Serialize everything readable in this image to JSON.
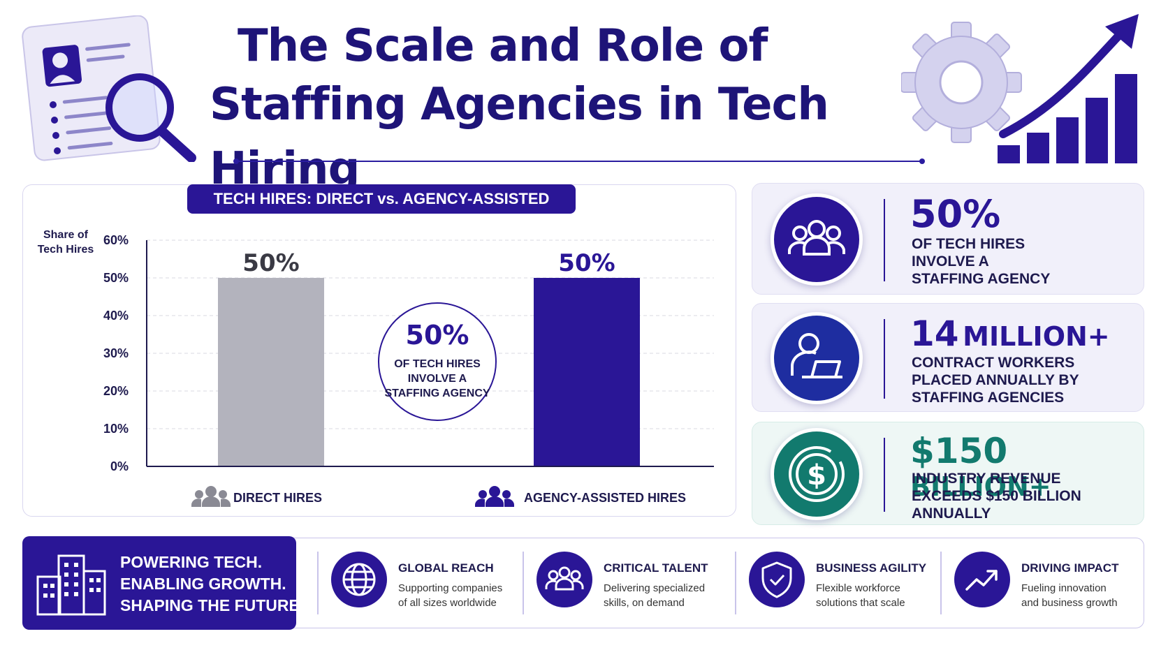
{
  "title": {
    "line1": "The Scale and Role of",
    "line2": "Staffing Agencies in Tech Hiring"
  },
  "chart_data": {
    "type": "bar",
    "title": "TECH HIRES: DIRECT vs. AGENCY-ASSISTED",
    "ylabel": "Share of Tech Hires",
    "ylim": [
      0,
      60
    ],
    "yticks": [
      "0%",
      "10%",
      "20%",
      "30%",
      "40%",
      "50%",
      "60%"
    ],
    "grid": true,
    "categories": [
      "DIRECT HIRES",
      "AGENCY-ASSISTED HIRES"
    ],
    "values": [
      50,
      50
    ],
    "data_labels": [
      "50%",
      "50%"
    ],
    "bar_colors": [
      "#b3b3bd",
      "#2a1696"
    ],
    "callout": {
      "value": "50%",
      "text_lines": [
        "OF TECH HIRES",
        "INVOLVE A",
        "STAFFING AGENCY"
      ]
    }
  },
  "stats": [
    {
      "icon": "people-group-icon",
      "value": "50%",
      "value_suffix": "",
      "lines": [
        "OF TECH HIRES",
        "INVOLVE A",
        "STAFFING AGENCY"
      ],
      "color": "#2a1696"
    },
    {
      "icon": "worker-laptop-icon",
      "value": "14",
      "value_suffix": "MILLION+",
      "lines": [
        "CONTRACT WORKERS",
        "PLACED ANNUALLY BY",
        "STAFFING AGENCIES"
      ],
      "color": "#2a1696"
    },
    {
      "icon": "dollar-coin-icon",
      "value": "$150",
      "value_suffix": "BILLION+",
      "lines": [
        "INDUSTRY REVENUE",
        "EXCEEDS $150 BILLION",
        "ANNUALLY"
      ],
      "color": "#127a6e"
    }
  ],
  "banner": {
    "lines": [
      "POWERING TECH.",
      "ENABLING GROWTH.",
      "SHAPING THE FUTURE."
    ]
  },
  "features": [
    {
      "icon": "globe-icon",
      "title": "GLOBAL REACH",
      "lines": [
        "Supporting companies",
        "of all sizes worldwide"
      ]
    },
    {
      "icon": "people-group-icon",
      "title": "CRITICAL TALENT",
      "lines": [
        "Delivering specialized",
        "skills, on demand"
      ]
    },
    {
      "icon": "shield-check-icon",
      "title": "BUSINESS AGILITY",
      "lines": [
        "Flexible workforce",
        "solutions that scale"
      ]
    },
    {
      "icon": "trend-up-icon",
      "title": "DRIVING IMPACT",
      "lines": [
        "Fueling innovation",
        "and business growth"
      ]
    }
  ],
  "colors": {
    "primary": "#2a1696",
    "gray_bar": "#b3b3bd",
    "teal": "#127a6e",
    "card_bg": "#f1f0fa",
    "teal_card_bg": "#eef7f5"
  }
}
